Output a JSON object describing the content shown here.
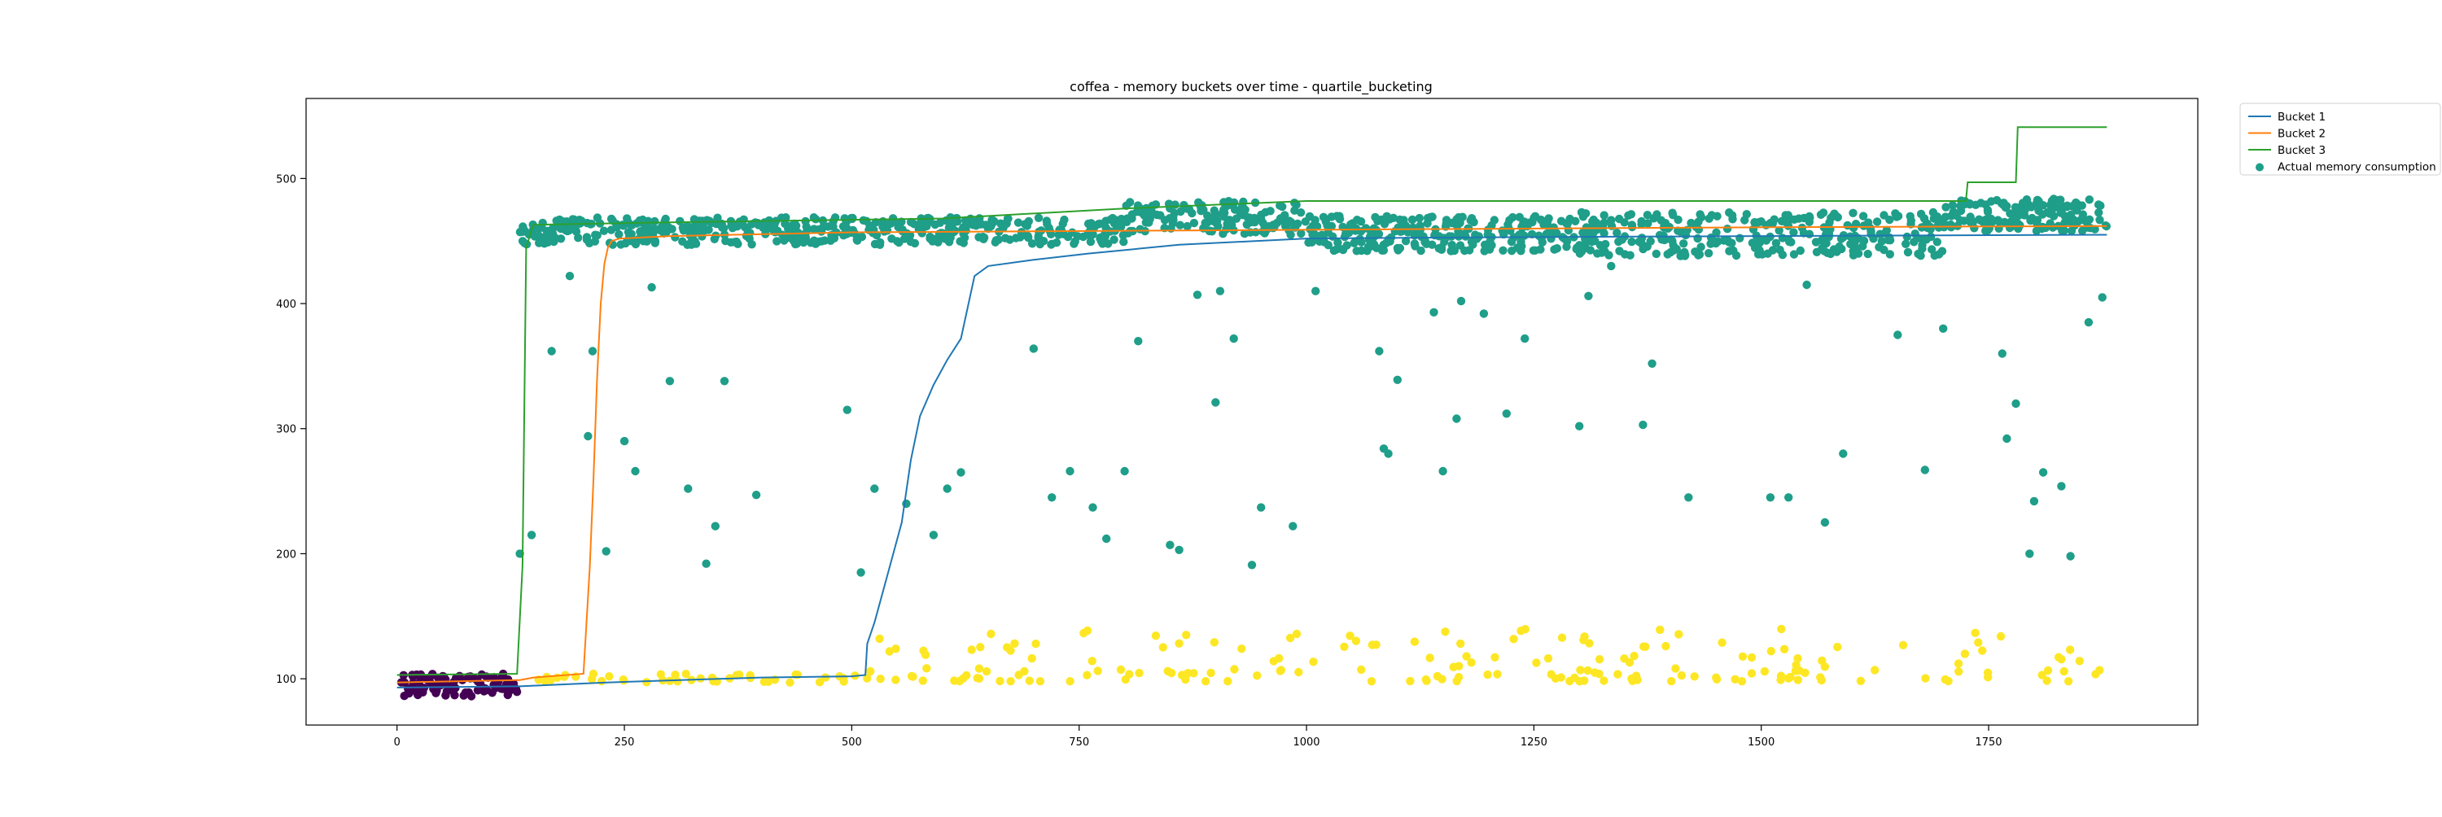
{
  "chart_data": {
    "type": "line",
    "title": "coffea - memory buckets over time - quartile_bucketing",
    "xlabel": "",
    "ylabel": "",
    "xlim": [
      -100,
      1980
    ],
    "ylim": [
      63,
      564
    ],
    "x_ticks": [
      0,
      250,
      500,
      750,
      1000,
      1250,
      1500,
      1750
    ],
    "y_ticks": [
      100,
      200,
      300,
      400,
      500
    ],
    "grid": false,
    "legend_position": "outside-top-right",
    "series": [
      {
        "name": "Bucket 1",
        "kind": "line",
        "color": "#1f77b4",
        "x": [
          0,
          135,
          230,
          400,
          500,
          515,
          517,
          525,
          540,
          555,
          565,
          575,
          590,
          605,
          620,
          635,
          650,
          700,
          760,
          860,
          1000,
          1200,
          1500,
          1880
        ],
        "y": [
          93,
          94,
          97,
          101,
          102,
          103,
          128,
          145,
          185,
          225,
          275,
          310,
          335,
          355,
          372,
          422,
          430,
          435,
          440,
          447,
          452,
          453,
          454,
          455
        ]
      },
      {
        "name": "Bucket 2",
        "kind": "line",
        "color": "#ff7f0e",
        "x": [
          0,
          135,
          150,
          205,
          212,
          216,
          220,
          224,
          228,
          232,
          236,
          245,
          300,
          500,
          1000,
          1500,
          1880
        ],
        "y": [
          97,
          99,
          101,
          104,
          190,
          260,
          340,
          400,
          432,
          445,
          450,
          452,
          454,
          457,
          459,
          461,
          462
        ]
      },
      {
        "name": "Bucket 3",
        "kind": "line",
        "color": "#2ca02c",
        "x": [
          0,
          132,
          138,
          142,
          150,
          300,
          600,
          800,
          1000,
          1725,
          1727,
          1780,
          1782,
          1880
        ],
        "y": [
          103,
          104,
          190,
          445,
          463,
          465,
          468,
          476,
          482,
          482,
          497,
          497,
          541,
          541
        ]
      },
      {
        "name": "Actual memory consumption",
        "kind": "scatter",
        "color": "#1f9e89",
        "groups": {
          "initial": {
            "color": "#440154",
            "x_range": [
              0,
              135
            ],
            "y_range": [
              86,
              104
            ],
            "count": 90
          },
          "low": {
            "color": "#fde725",
            "x_range": [
              140,
              1880
            ],
            "y_range": [
              97,
              140
            ],
            "count": 230
          },
          "high": {
            "color": "#1f9e89",
            "x_range": [
              135,
              1880
            ],
            "y_range": [
              440,
              482
            ],
            "count": 1300
          }
        },
        "outliers": {
          "x": [
            135,
            148,
            170,
            190,
            210,
            215,
            230,
            250,
            262,
            280,
            300,
            320,
            340,
            350,
            360,
            395,
            495,
            510,
            525,
            560,
            590,
            605,
            620,
            700,
            720,
            740,
            765,
            780,
            800,
            815,
            850,
            860,
            880,
            900,
            905,
            920,
            940,
            950,
            985,
            1010,
            1080,
            1085,
            1090,
            1100,
            1140,
            1150,
            1165,
            1170,
            1195,
            1220,
            1240,
            1300,
            1310,
            1335,
            1370,
            1380,
            1420,
            1510,
            1530,
            1550,
            1570,
            1590,
            1650,
            1680,
            1700,
            1765,
            1770,
            1780,
            1795,
            1800,
            1810,
            1830,
            1840,
            1860,
            1875
          ],
          "y": [
            200,
            215,
            362,
            422,
            294,
            362,
            202,
            290,
            266,
            413,
            338,
            252,
            192,
            222,
            338,
            247,
            315,
            185,
            252,
            240,
            215,
            252,
            265,
            364,
            245,
            266,
            237,
            212,
            266,
            370,
            207,
            203,
            407,
            321,
            410,
            372,
            191,
            237,
            222,
            410,
            362,
            284,
            280,
            339,
            393,
            266,
            308,
            402,
            392,
            312,
            372,
            302,
            406,
            430,
            303,
            352,
            245,
            245,
            245,
            415,
            225,
            280,
            375,
            267,
            380,
            360,
            292,
            320,
            200,
            242,
            265,
            254,
            198,
            385,
            405
          ]
        }
      }
    ]
  }
}
